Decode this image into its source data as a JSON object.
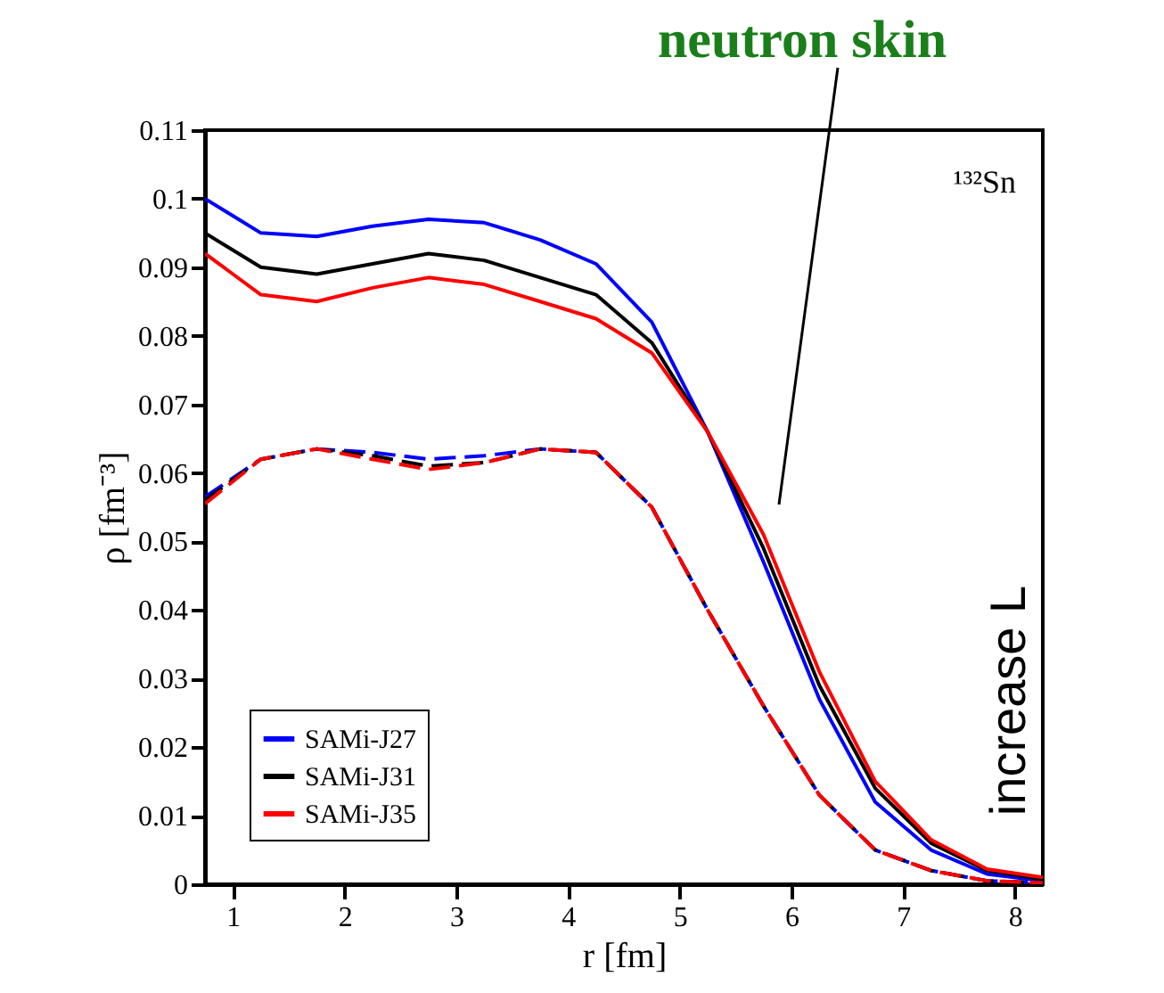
{
  "chart_data": {
    "type": "line",
    "xlabel": "r [fm]",
    "ylabel": "ρ [fm⁻³]",
    "x": [
      0.75,
      1.25,
      1.75,
      2.25,
      2.75,
      3.25,
      3.75,
      4.25,
      4.75,
      5.25,
      5.75,
      6.25,
      6.75,
      7.25,
      7.75,
      8.25
    ],
    "xlim": [
      0.75,
      8.25
    ],
    "xticks": [
      1,
      2,
      3,
      4,
      5,
      6,
      7,
      8
    ],
    "ylim": [
      0,
      0.11
    ],
    "yticks": [
      0,
      0.01,
      0.02,
      0.03,
      0.04,
      0.05,
      0.06,
      0.07,
      0.08,
      0.09,
      0.1,
      0.11
    ],
    "grid": false,
    "legend": "bottom left",
    "series": [
      {
        "name": "SAMi-J27",
        "color": "#0000ff",
        "line_style": "solid",
        "values": [
          0.1,
          0.095,
          0.0945,
          0.096,
          0.097,
          0.0965,
          0.094,
          0.0905,
          0.082,
          0.066,
          0.047,
          0.027,
          0.012,
          0.005,
          0.0015,
          0.0005
        ]
      },
      {
        "name": "SAMi-J31",
        "color": "#000000",
        "line_style": "solid",
        "values": [
          0.095,
          0.09,
          0.089,
          0.0905,
          0.092,
          0.091,
          0.0885,
          0.086,
          0.079,
          0.066,
          0.049,
          0.029,
          0.014,
          0.006,
          0.002,
          0.0007
        ]
      },
      {
        "name": "SAMi-J35",
        "color": "#ff0000",
        "line_style": "solid",
        "values": [
          0.092,
          0.086,
          0.085,
          0.087,
          0.0885,
          0.0875,
          0.085,
          0.0825,
          0.0775,
          0.066,
          0.051,
          0.031,
          0.015,
          0.0065,
          0.0022,
          0.001
        ]
      },
      {
        "color": "#0000ff",
        "line_style": "dashed",
        "values": [
          0.0565,
          0.062,
          0.0635,
          0.063,
          0.062,
          0.0625,
          0.0635,
          0.063,
          0.055,
          0.04,
          0.026,
          0.013,
          0.005,
          0.002,
          0.0005,
          0.0002
        ]
      },
      {
        "color": "#000000",
        "line_style": "dashed",
        "values": [
          0.056,
          0.062,
          0.0635,
          0.0625,
          0.061,
          0.0615,
          0.0635,
          0.063,
          0.055,
          0.04,
          0.026,
          0.013,
          0.005,
          0.002,
          0.0005,
          0.0002
        ]
      },
      {
        "color": "#ff0000",
        "line_style": "dashed",
        "values": [
          0.0555,
          0.062,
          0.0635,
          0.062,
          0.0605,
          0.0615,
          0.0635,
          0.063,
          0.055,
          0.04,
          0.026,
          0.013,
          0.005,
          0.002,
          0.0005,
          0.0002
        ]
      }
    ],
    "annotations": [
      "neutron skin",
      "¹³²Sn",
      "increase L"
    ]
  }
}
